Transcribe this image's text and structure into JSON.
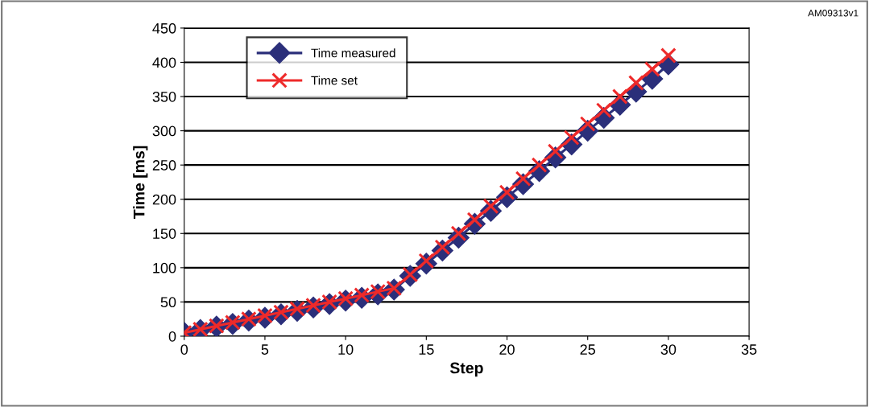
{
  "chart_data": {
    "type": "line",
    "xlabel": "Step",
    "ylabel": "Time [ms]",
    "annotations": [
      "AM09313v1"
    ],
    "x": [
      0,
      1,
      2,
      3,
      4,
      5,
      6,
      7,
      8,
      9,
      10,
      11,
      12,
      13,
      14,
      15,
      16,
      17,
      18,
      19,
      20,
      21,
      22,
      23,
      24,
      25,
      26,
      27,
      28,
      29,
      30
    ],
    "series": [
      {
        "name": "Time measured",
        "color": "#2b2f7a",
        "marker": "diamond",
        "values": [
          5,
          9,
          14,
          18,
          23,
          27,
          32,
          37,
          42,
          47,
          52,
          56,
          61,
          68,
          88,
          106,
          125,
          144,
          164,
          183,
          203,
          222,
          241,
          261,
          280,
          300,
          319,
          338,
          357,
          376,
          397
        ]
      },
      {
        "name": "Time set",
        "color": "#ee2a2a",
        "marker": "cross",
        "values": [
          5,
          10,
          15,
          20,
          25,
          30,
          35,
          40,
          45,
          50,
          55,
          60,
          65,
          70,
          90,
          110,
          130,
          150,
          170,
          190,
          210,
          230,
          250,
          270,
          290,
          310,
          330,
          350,
          370,
          390,
          410
        ]
      }
    ],
    "xlim": [
      0,
      35
    ],
    "xticks": [
      0,
      5,
      10,
      15,
      20,
      25,
      30,
      35
    ],
    "ylim": [
      0,
      450
    ],
    "yticks": [
      0,
      50,
      100,
      150,
      200,
      250,
      300,
      350,
      400,
      450
    ],
    "grid": "y",
    "legend": "top left",
    "line_style": "solid"
  }
}
